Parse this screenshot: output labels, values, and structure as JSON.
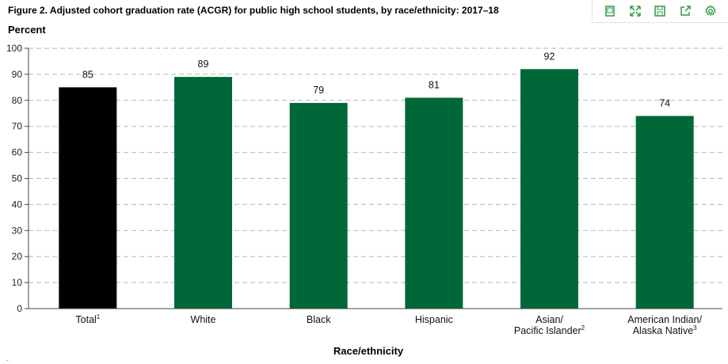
{
  "figure_title": "Figure 2. Adjusted cohort graduation rate (ACGR) for public high school students, by race/ethnicity: 2017–18",
  "toolbar": [
    {
      "icon": "document-icon"
    },
    {
      "icon": "expand-icon"
    },
    {
      "icon": "save-icon"
    },
    {
      "icon": "share-icon"
    },
    {
      "icon": "gear-icon"
    }
  ],
  "colors": {
    "total": "#000000",
    "group": "#006838",
    "toolbar_icon": "#2e9c4a"
  },
  "footnote_mark": "-",
  "chart_data": {
    "type": "bar",
    "title": "",
    "ylabel": "Percent",
    "xlabel": "Race/ethnicity",
    "ylim": [
      0,
      100
    ],
    "yticks": [
      0,
      10,
      20,
      30,
      40,
      50,
      60,
      70,
      80,
      90,
      100
    ],
    "grid": true,
    "categories": [
      {
        "lines": [
          "Total"
        ],
        "sup": "1"
      },
      {
        "lines": [
          "White"
        ],
        "sup": ""
      },
      {
        "lines": [
          "Black"
        ],
        "sup": ""
      },
      {
        "lines": [
          "Hispanic"
        ],
        "sup": ""
      },
      {
        "lines": [
          "Asian/",
          "Pacific Islander"
        ],
        "sup": "2"
      },
      {
        "lines": [
          "American Indian/",
          "Alaska Native"
        ],
        "sup": "3"
      }
    ],
    "values": [
      85,
      89,
      79,
      81,
      92,
      74
    ],
    "data_labels": [
      "85",
      "89",
      "79",
      "81",
      "92",
      "74"
    ]
  }
}
